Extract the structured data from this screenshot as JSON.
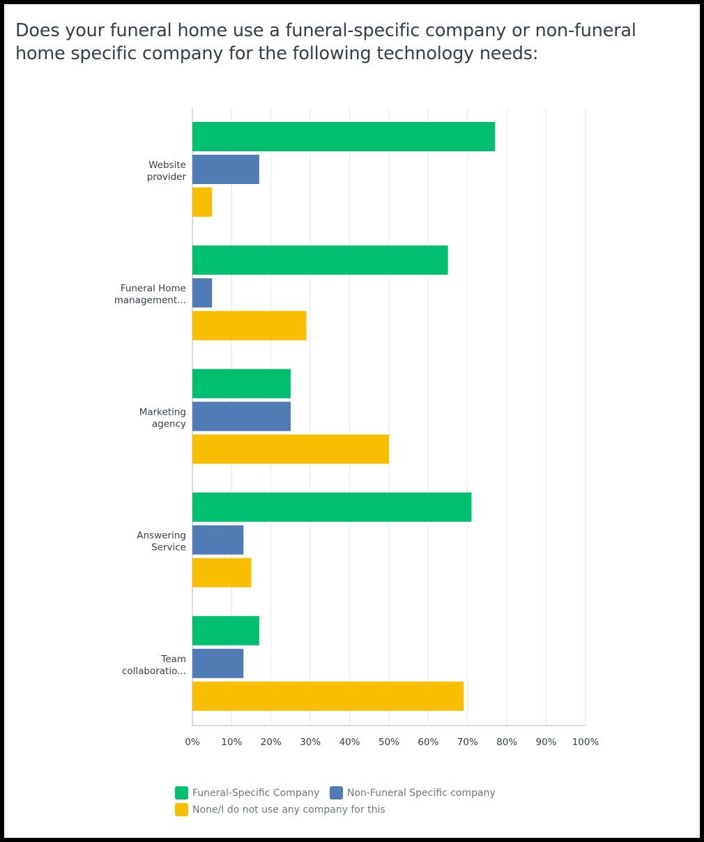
{
  "title": "Does your funeral home use a funeral-specific company or non-funeral home specific company for the following technology needs:",
  "colors": {
    "funeral_specific": "#00bf6f",
    "non_funeral_specific": "#507cb6",
    "none": "#f9be00",
    "grid": "#e6e6e6",
    "axis": "#b0b6bb"
  },
  "chart_data": {
    "type": "bar",
    "orientation": "horizontal",
    "categories": [
      "Website provider",
      "Funeral Home management...",
      "Marketing agency",
      "Answering Service",
      "Team collaboratio..."
    ],
    "category_label_lines": [
      [
        "Website",
        "provider"
      ],
      [
        "Funeral Home",
        "management..."
      ],
      [
        "Marketing",
        "agency"
      ],
      [
        "Answering",
        "Service"
      ],
      [
        "Team",
        "collaboratio..."
      ]
    ],
    "series": [
      {
        "name": "Funeral-Specific Company",
        "values": [
          77,
          65,
          25,
          71,
          17
        ]
      },
      {
        "name": "Non-Funeral Specific company",
        "values": [
          17,
          5,
          25,
          13,
          13
        ]
      },
      {
        "name": "None/I do not use any company for this",
        "values": [
          5,
          29,
          50,
          15,
          69
        ]
      }
    ],
    "xlim": [
      0,
      100
    ],
    "ticks": [
      "0%",
      "10%",
      "20%",
      "30%",
      "40%",
      "50%",
      "60%",
      "70%",
      "80%",
      "90%",
      "100%"
    ],
    "grid": true,
    "legend_position": "bottom"
  }
}
